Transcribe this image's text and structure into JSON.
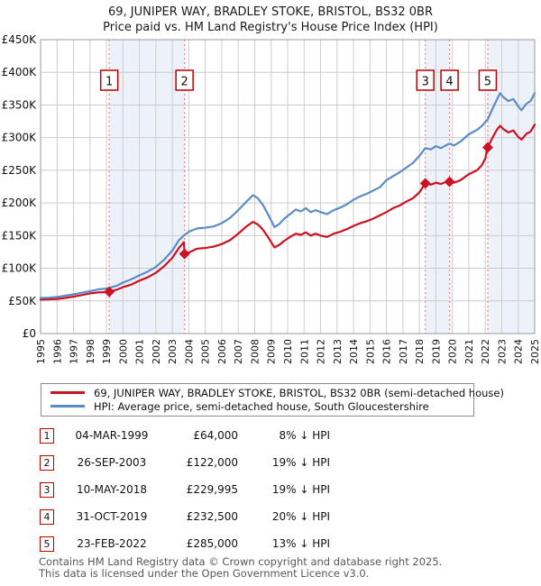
{
  "title": {
    "line1": "69, JUNIPER WAY, BRADLEY STOKE, BRISTOL, BS32 0BR",
    "line2": "Price paid vs. HM Land Registry's House Price Index (HPI)"
  },
  "chart_data": {
    "type": "line",
    "title": "Price paid vs. HM Land Registry's House Price Index (HPI)",
    "x_range": [
      1995,
      2025
    ],
    "y_range_gbp": [
      0,
      450000
    ],
    "y_units": "GBP thousands",
    "grid": true,
    "y_tick_labels": [
      "£0",
      "£50K",
      "£100K",
      "£150K",
      "£200K",
      "£250K",
      "£300K",
      "£350K",
      "£400K",
      "£450K"
    ],
    "x_ticks": [
      1995,
      1996,
      1997,
      1998,
      1999,
      2000,
      2001,
      2002,
      2003,
      2004,
      2005,
      2006,
      2007,
      2008,
      2009,
      2010,
      2011,
      2012,
      2013,
      2014,
      2015,
      2016,
      2017,
      2018,
      2019,
      2020,
      2021,
      2022,
      2023,
      2024,
      2025
    ],
    "colors": {
      "property": "#cc1122",
      "hpi": "#5c8cc6",
      "band": "#edf2fa",
      "grid": "#cccccc",
      "border": "#999999",
      "vline": "#f08080",
      "badge_border": "#bb0000"
    },
    "shaded_bands": [
      [
        1999.17,
        2003.74
      ],
      [
        2018.36,
        2019.83
      ],
      [
        2022.15,
        2025.0
      ]
    ],
    "sale_markers": [
      {
        "label": "1",
        "year": 1999.17,
        "value_k": 64
      },
      {
        "label": "2",
        "year": 2003.74,
        "value_k": 122
      },
      {
        "label": "3",
        "year": 2018.36,
        "value_k": 229.995
      },
      {
        "label": "4",
        "year": 2019.83,
        "value_k": 232.5
      },
      {
        "label": "5",
        "year": 2022.15,
        "value_k": 285
      }
    ],
    "series": [
      {
        "name": "69, JUNIPER WAY, BRADLEY STOKE, BRISTOL, BS32 0BR (semi-detached house)",
        "key": "property",
        "points": [
          [
            1995,
            52
          ],
          [
            1995.5,
            52.5
          ],
          [
            1996,
            53
          ],
          [
            1996.5,
            54.5
          ],
          [
            1997,
            56.5
          ],
          [
            1997.5,
            59
          ],
          [
            1998,
            61.5
          ],
          [
            1998.5,
            63
          ],
          [
            1999,
            63.5
          ],
          [
            1999.17,
            64
          ],
          [
            1999.6,
            67
          ],
          [
            2000,
            71
          ],
          [
            2000.5,
            75
          ],
          [
            2001,
            81
          ],
          [
            2001.5,
            86
          ],
          [
            2002,
            93
          ],
          [
            2002.5,
            103
          ],
          [
            2003,
            116
          ],
          [
            2003.4,
            131
          ],
          [
            2003.7,
            140
          ],
          [
            2003.74,
            122
          ],
          [
            2004,
            124
          ],
          [
            2004.5,
            130
          ],
          [
            2005,
            131
          ],
          [
            2005.5,
            133
          ],
          [
            2006,
            137
          ],
          [
            2006.5,
            143
          ],
          [
            2007,
            153
          ],
          [
            2007.5,
            164
          ],
          [
            2007.9,
            171
          ],
          [
            2008.2,
            167
          ],
          [
            2008.5,
            159
          ],
          [
            2008.8,
            148
          ],
          [
            2009.2,
            132
          ],
          [
            2009.5,
            136
          ],
          [
            2009.8,
            142
          ],
          [
            2010.2,
            149
          ],
          [
            2010.5,
            153
          ],
          [
            2010.8,
            151
          ],
          [
            2011.1,
            155
          ],
          [
            2011.4,
            150
          ],
          [
            2011.7,
            153
          ],
          [
            2012,
            150
          ],
          [
            2012.4,
            148
          ],
          [
            2012.8,
            153
          ],
          [
            2013.2,
            156
          ],
          [
            2013.6,
            160
          ],
          [
            2014,
            165
          ],
          [
            2014.4,
            169
          ],
          [
            2014.8,
            172
          ],
          [
            2015.2,
            176
          ],
          [
            2015.6,
            181
          ],
          [
            2016,
            186
          ],
          [
            2016.4,
            192
          ],
          [
            2016.8,
            196
          ],
          [
            2017.2,
            202
          ],
          [
            2017.6,
            207
          ],
          [
            2018,
            216
          ],
          [
            2018.36,
            230
          ],
          [
            2018.7,
            228
          ],
          [
            2019,
            231
          ],
          [
            2019.3,
            229
          ],
          [
            2019.6,
            232
          ],
          [
            2019.83,
            232.5
          ],
          [
            2020.1,
            231
          ],
          [
            2020.5,
            235
          ],
          [
            2021,
            244
          ],
          [
            2021.5,
            250
          ],
          [
            2021.8,
            258
          ],
          [
            2022,
            268
          ],
          [
            2022.15,
            285
          ],
          [
            2022.4,
            298
          ],
          [
            2022.7,
            312
          ],
          [
            2022.9,
            318
          ],
          [
            2023.1,
            313
          ],
          [
            2023.4,
            308
          ],
          [
            2023.7,
            311
          ],
          [
            2024,
            301
          ],
          [
            2024.2,
            297
          ],
          [
            2024.5,
            306
          ],
          [
            2024.75,
            309
          ],
          [
            2025,
            320
          ]
        ]
      },
      {
        "name": "HPI: Average price, semi-detached house, South Gloucestershire",
        "key": "hpi",
        "points": [
          [
            1995,
            54.5
          ],
          [
            1995.5,
            55
          ],
          [
            1996,
            56
          ],
          [
            1996.5,
            58
          ],
          [
            1997,
            60
          ],
          [
            1997.5,
            62.5
          ],
          [
            1998,
            65
          ],
          [
            1998.5,
            67.5
          ],
          [
            1999,
            69
          ],
          [
            1999.17,
            70
          ],
          [
            1999.6,
            73
          ],
          [
            2000,
            78
          ],
          [
            2000.5,
            83
          ],
          [
            2001,
            89
          ],
          [
            2001.5,
            95
          ],
          [
            2002,
            102
          ],
          [
            2002.5,
            113
          ],
          [
            2003,
            127
          ],
          [
            2003.4,
            143
          ],
          [
            2003.74,
            151
          ],
          [
            2004,
            156
          ],
          [
            2004.5,
            161
          ],
          [
            2005,
            162
          ],
          [
            2005.5,
            164
          ],
          [
            2006,
            169
          ],
          [
            2006.5,
            177
          ],
          [
            2007,
            189
          ],
          [
            2007.5,
            202
          ],
          [
            2007.9,
            212
          ],
          [
            2008.2,
            207
          ],
          [
            2008.5,
            197
          ],
          [
            2008.8,
            183
          ],
          [
            2009.2,
            163
          ],
          [
            2009.5,
            168
          ],
          [
            2009.8,
            176
          ],
          [
            2010.2,
            184
          ],
          [
            2010.5,
            190
          ],
          [
            2010.8,
            187
          ],
          [
            2011.1,
            192
          ],
          [
            2011.4,
            186
          ],
          [
            2011.7,
            189
          ],
          [
            2012,
            186
          ],
          [
            2012.4,
            183
          ],
          [
            2012.8,
            189
          ],
          [
            2013.2,
            193
          ],
          [
            2013.6,
            198
          ],
          [
            2014,
            205
          ],
          [
            2014.4,
            210
          ],
          [
            2014.8,
            214
          ],
          [
            2015.2,
            219
          ],
          [
            2015.6,
            224
          ],
          [
            2016,
            235
          ],
          [
            2016.4,
            241
          ],
          [
            2016.8,
            247
          ],
          [
            2017.2,
            254
          ],
          [
            2017.6,
            261
          ],
          [
            2018,
            272
          ],
          [
            2018.36,
            284
          ],
          [
            2018.7,
            282
          ],
          [
            2019,
            287
          ],
          [
            2019.3,
            284
          ],
          [
            2019.6,
            288
          ],
          [
            2019.83,
            291
          ],
          [
            2020.1,
            288
          ],
          [
            2020.5,
            294
          ],
          [
            2021,
            305
          ],
          [
            2021.5,
            312
          ],
          [
            2021.8,
            318
          ],
          [
            2022,
            324
          ],
          [
            2022.15,
            328
          ],
          [
            2022.4,
            342
          ],
          [
            2022.7,
            358
          ],
          [
            2022.9,
            368
          ],
          [
            2023.1,
            362
          ],
          [
            2023.4,
            356
          ],
          [
            2023.7,
            359
          ],
          [
            2024,
            348
          ],
          [
            2024.2,
            342
          ],
          [
            2024.5,
            352
          ],
          [
            2024.75,
            356
          ],
          [
            2025,
            368
          ]
        ]
      }
    ]
  },
  "legend": {
    "items": [
      {
        "label": "69, JUNIPER WAY, BRADLEY STOKE, BRISTOL, BS32 0BR (semi-detached house)",
        "color": "#cc1122"
      },
      {
        "label": "HPI: Average price, semi-detached house, South Gloucestershire",
        "color": "#5c8cc6"
      }
    ]
  },
  "table": {
    "rows": [
      {
        "num": "1",
        "date": "04-MAR-1999",
        "price": "£64,000",
        "pct": "8% ↓ HPI"
      },
      {
        "num": "2",
        "date": "26-SEP-2003",
        "price": "£122,000",
        "pct": "19% ↓ HPI"
      },
      {
        "num": "3",
        "date": "10-MAY-2018",
        "price": "£229,995",
        "pct": "19% ↓ HPI"
      },
      {
        "num": "4",
        "date": "31-OCT-2019",
        "price": "£232,500",
        "pct": "20% ↓ HPI"
      },
      {
        "num": "5",
        "date": "23-FEB-2022",
        "price": "£285,000",
        "pct": "13% ↓ HPI"
      }
    ]
  },
  "footer": {
    "line1": "Contains HM Land Registry data © Crown copyright and database right 2025.",
    "line2": "This data is licensed under the Open Government Licence v3.0."
  }
}
